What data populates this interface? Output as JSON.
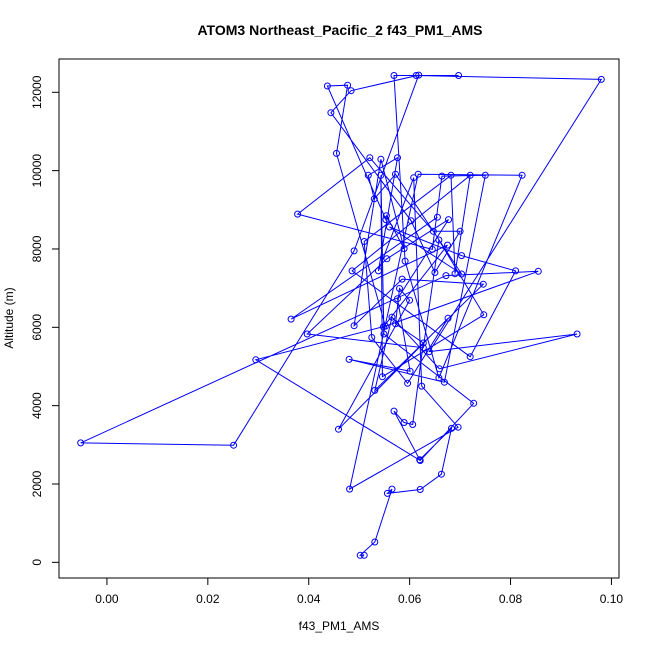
{
  "chart_data": {
    "type": "line",
    "title": "ATOM3 Northeast_Pacific_2 f43_PM1_AMS",
    "xlabel": "f43_PM1_AMS",
    "ylabel": "Altitude (m)",
    "xlim": [
      -0.0095,
      0.1015
    ],
    "ylim": [
      -400,
      12850
    ],
    "xticks": [
      0.0,
      0.02,
      0.04,
      0.06,
      0.08,
      0.1
    ],
    "xtick_labels": [
      "0.00",
      "0.02",
      "0.04",
      "0.06",
      "0.08",
      "0.10"
    ],
    "yticks": [
      0,
      2000,
      4000,
      6000,
      8000,
      10000,
      12000
    ],
    "ytick_labels": [
      "0",
      "2000",
      "4000",
      "6000",
      "8000",
      "10000",
      "12000"
    ],
    "grid": false,
    "series": [
      {
        "color": "#0000ff",
        "marker": "open-circle",
        "points": [
          [
            0.051,
            180
          ],
          [
            0.0502,
            180
          ],
          [
            0.0531,
            520
          ],
          [
            0.0565,
            1870
          ],
          [
            0.0556,
            1760
          ],
          [
            0.0621,
            1860
          ],
          [
            0.0663,
            2250
          ],
          [
            0.0683,
            3420
          ],
          [
            0.062,
            2620
          ],
          [
            0.0569,
            3860
          ],
          [
            0.0589,
            3570
          ],
          [
            0.0606,
            3520
          ],
          [
            0.0627,
            5600
          ],
          [
            0.0572,
            6090
          ],
          [
            0.058,
            6990
          ],
          [
            0.06,
            6690
          ],
          [
            0.0459,
            3400
          ],
          [
            0.0676,
            6230
          ],
          [
            0.0596,
            4570
          ],
          [
            0.0525,
            5740
          ],
          [
            0.051,
            8190
          ],
          [
            0.0682,
            9880
          ],
          [
            0.069,
            7370
          ],
          [
            0.072,
            9880
          ],
          [
            0.0486,
            7440
          ],
          [
            0.072,
            5250
          ],
          [
            0.081,
            7440
          ],
          [
            0.0703,
            7830
          ],
          [
            0.056,
            8560
          ],
          [
            0.0703,
            7360
          ],
          [
            0.0572,
            9910
          ],
          [
            0.053,
            9280
          ],
          [
            0.0518,
            9880
          ],
          [
            0.0576,
            10330
          ],
          [
            0.0538,
            7440
          ],
          [
            0.0608,
            9820
          ],
          [
            0.0624,
            4500
          ],
          [
            0.0696,
            3450
          ],
          [
            0.0481,
            1870
          ],
          [
            0.0617,
            9910
          ],
          [
            0.0823,
            9880
          ],
          [
            0.0658,
            4710
          ],
          [
            0.0591,
            7690
          ],
          [
            0.0569,
            12430
          ],
          [
            0.0697,
            12430
          ],
          [
            0.0613,
            12430
          ],
          [
            0.098,
            12330
          ],
          [
            0.0639,
            5380
          ],
          [
            0.0932,
            5830
          ],
          [
            0.0659,
            4940
          ],
          [
            0.0565,
            6260
          ],
          [
            0.0531,
            4390
          ],
          [
            0.0746,
            7100
          ],
          [
            0.0585,
            7230
          ],
          [
            0.049,
            6040
          ],
          [
            0.0543,
            10290
          ],
          [
            0.0589,
            8010
          ],
          [
            0.0554,
            8850
          ],
          [
            0.0553,
            8750
          ],
          [
            0.0437,
            12160
          ],
          [
            0.0477,
            12180
          ],
          [
            0.0455,
            10440
          ],
          [
            0.0552,
            6030
          ],
          [
            0.0295,
            5170
          ],
          [
            0.0621,
            2600
          ],
          [
            0.0727,
            4060
          ],
          [
            0.0549,
            5830
          ],
          [
            0.0543,
            9880
          ],
          [
            0.0546,
            4740
          ],
          [
            0.0747,
            6320
          ],
          [
            0.0658,
            8230
          ],
          [
            0.0627,
            5480
          ],
          [
            0.0397,
            5830
          ],
          [
            0.0555,
            7750
          ],
          [
            0.0677,
            8750
          ],
          [
            0.0576,
            6730
          ],
          [
            0.0601,
            4880
          ],
          [
            0.048,
            5180
          ],
          [
            0.0669,
            4600
          ],
          [
            0.075,
            9880
          ],
          [
            0.0664,
            9860
          ],
          [
            0.0645,
            7990
          ],
          [
            0.0378,
            8890
          ],
          [
            0.0521,
            10330
          ],
          [
            0.0647,
            8450
          ],
          [
            0.07,
            8450
          ],
          [
            0.065,
            7400
          ],
          [
            0.0603,
            8720
          ],
          [
            0.0444,
            11480
          ],
          [
            0.0484,
            12040
          ],
          [
            0.0618,
            12440
          ],
          [
            0.049,
            7950
          ],
          [
            0.0251,
            2990
          ],
          [
            -0.0052,
            3050
          ],
          [
            0.0672,
            7320
          ],
          [
            0.0855,
            7430
          ],
          [
            0.0548,
            6010
          ],
          [
            0.0675,
            8100
          ],
          [
            0.0365,
            6210
          ],
          [
            0.0655,
            8810
          ]
        ]
      }
    ]
  }
}
